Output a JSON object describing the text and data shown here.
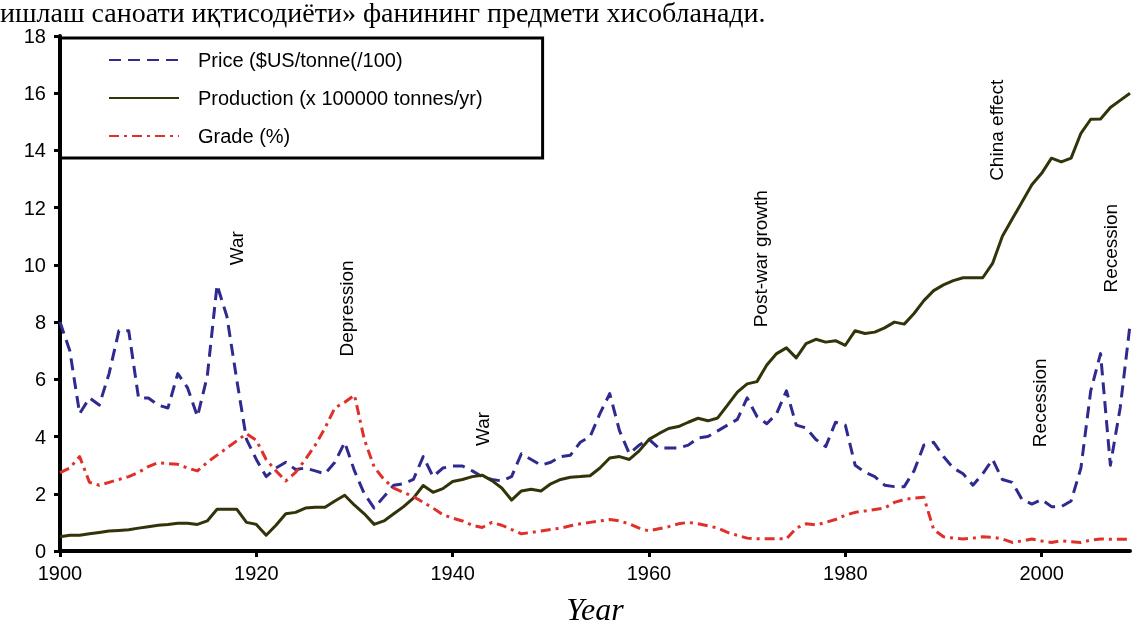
{
  "chart_data": {
    "type": "line",
    "annotations": [
      "ишлаш саноати иқтисодиёти» фанининг предмети хисобланади.",
      "War",
      "Depression",
      "War",
      "Post-war growth",
      "China effect",
      "Recession",
      "Recession"
    ],
    "xlabel": "Year",
    "x": [
      1900,
      1901,
      1902,
      1903,
      1904,
      1905,
      1906,
      1907,
      1908,
      1909,
      1910,
      1911,
      1912,
      1913,
      1914,
      1915,
      1916,
      1917,
      1918,
      1919,
      1920,
      1921,
      1922,
      1923,
      1924,
      1925,
      1926,
      1927,
      1928,
      1929,
      1930,
      1931,
      1932,
      1933,
      1934,
      1935,
      1936,
      1937,
      1938,
      1939,
      1940,
      1941,
      1942,
      1943,
      1944,
      1945,
      1946,
      1947,
      1948,
      1949,
      1950,
      1951,
      1952,
      1953,
      1954,
      1955,
      1956,
      1957,
      1958,
      1959,
      1960,
      1961,
      1962,
      1963,
      1964,
      1965,
      1966,
      1967,
      1968,
      1969,
      1970,
      1971,
      1972,
      1973,
      1974,
      1975,
      1976,
      1977,
      1978,
      1979,
      1980,
      1981,
      1982,
      1983,
      1984,
      1985,
      1986,
      1987,
      1988,
      1989,
      1990,
      1991,
      1992,
      1993,
      1994,
      1995,
      1996,
      1997,
      1998,
      1999,
      2000,
      2001,
      2002,
      2003,
      2004,
      2005,
      2006,
      2007,
      2008,
      2009
    ],
    "series": [
      {
        "name": "Price ($US/tonne(/100)",
        "color": "#2f2a8f",
        "line_style": "dashed",
        "values": [
          8.0,
          7.0,
          4.8,
          5.35,
          5.1,
          6.2,
          7.7,
          7.7,
          5.35,
          5.35,
          5.1,
          5.0,
          6.2,
          5.7,
          4.7,
          6.1,
          9.3,
          8.2,
          6.0,
          3.9,
          3.2,
          2.6,
          2.9,
          3.1,
          2.85,
          2.9,
          2.8,
          2.7,
          3.1,
          3.8,
          2.8,
          2.0,
          1.5,
          1.9,
          2.3,
          2.35,
          2.5,
          3.3,
          2.6,
          2.9,
          2.97,
          2.97,
          2.8,
          2.6,
          2.5,
          2.45,
          2.6,
          3.4,
          3.2,
          3.0,
          3.1,
          3.3,
          3.35,
          3.8,
          4.0,
          4.8,
          5.5,
          4.2,
          3.4,
          3.7,
          3.9,
          3.6,
          3.6,
          3.6,
          3.7,
          3.95,
          4.0,
          4.2,
          4.4,
          4.6,
          5.35,
          4.7,
          4.45,
          4.8,
          5.6,
          4.4,
          4.3,
          3.9,
          3.65,
          4.5,
          4.4,
          3.0,
          2.75,
          2.6,
          2.3,
          2.25,
          2.25,
          2.8,
          3.7,
          3.8,
          3.3,
          2.9,
          2.7,
          2.3,
          2.7,
          3.2,
          2.5,
          2.4,
          1.8,
          1.64,
          1.8,
          1.55,
          1.55,
          1.75,
          2.9,
          5.6,
          6.9,
          3.0,
          5.0,
          7.9
        ]
      },
      {
        "name": "Production (x 100000 tonnes/yr)",
        "color": "#33330a",
        "line_style": "solid",
        "values": [
          0.5,
          0.55,
          0.55,
          0.6,
          0.65,
          0.7,
          0.72,
          0.74,
          0.8,
          0.85,
          0.9,
          0.93,
          0.97,
          0.97,
          0.93,
          1.05,
          1.46,
          1.46,
          1.46,
          1.0,
          0.93,
          0.55,
          0.9,
          1.3,
          1.35,
          1.5,
          1.53,
          1.53,
          1.75,
          1.95,
          1.6,
          1.3,
          0.93,
          1.05,
          1.3,
          1.55,
          1.85,
          2.29,
          2.05,
          2.18,
          2.43,
          2.5,
          2.6,
          2.65,
          2.46,
          2.2,
          1.78,
          2.1,
          2.16,
          2.1,
          2.35,
          2.5,
          2.58,
          2.6,
          2.63,
          2.9,
          3.25,
          3.3,
          3.2,
          3.5,
          3.9,
          4.1,
          4.28,
          4.35,
          4.5,
          4.64,
          4.55,
          4.65,
          5.1,
          5.55,
          5.84,
          5.92,
          6.5,
          6.9,
          7.1,
          6.75,
          7.25,
          7.4,
          7.3,
          7.35,
          7.19,
          7.7,
          7.6,
          7.65,
          7.8,
          8.0,
          7.93,
          8.3,
          8.75,
          9.1,
          9.3,
          9.45,
          9.55,
          9.55,
          9.55,
          10.05,
          11.0,
          11.6,
          12.2,
          12.8,
          13.2,
          13.73,
          13.6,
          13.73,
          14.6,
          15.09,
          15.1,
          15.5,
          15.75,
          16.0
        ]
      },
      {
        "name": "Grade (%)",
        "color": "#e0302a",
        "line_style": "dashdot",
        "values": [
          2.74,
          2.9,
          3.3,
          2.4,
          2.3,
          2.4,
          2.5,
          2.6,
          2.75,
          2.95,
          3.09,
          3.05,
          3.03,
          2.9,
          2.8,
          3.1,
          3.35,
          3.6,
          3.85,
          4.1,
          3.87,
          3.2,
          2.8,
          2.45,
          2.75,
          3.2,
          3.7,
          4.3,
          5.0,
          5.2,
          5.45,
          3.9,
          2.94,
          2.5,
          2.2,
          2.05,
          1.9,
          1.7,
          1.5,
          1.27,
          1.15,
          1.05,
          0.9,
          0.82,
          1.0,
          0.9,
          0.75,
          0.6,
          0.65,
          0.7,
          0.75,
          0.8,
          0.88,
          0.95,
          1.0,
          1.05,
          1.1,
          1.05,
          0.95,
          0.8,
          0.7,
          0.78,
          0.85,
          0.95,
          1.0,
          0.95,
          0.88,
          0.8,
          0.65,
          0.55,
          0.45,
          0.43,
          0.43,
          0.43,
          0.42,
          0.8,
          0.95,
          0.91,
          1.0,
          1.1,
          1.25,
          1.35,
          1.4,
          1.45,
          1.5,
          1.7,
          1.8,
          1.85,
          1.88,
          0.75,
          0.5,
          0.45,
          0.42,
          0.45,
          0.5,
          0.48,
          0.42,
          0.3,
          0.35,
          0.42,
          0.35,
          0.3,
          0.36,
          0.32,
          0.3,
          0.38,
          0.42,
          0.41,
          0.41,
          0.41
        ]
      }
    ],
    "xlim": [
      1900,
      2009
    ],
    "xticks": [
      1900,
      1920,
      1940,
      1960,
      1980,
      2000
    ],
    "ylim": [
      0,
      18
    ],
    "yticks": [
      0,
      2,
      4,
      6,
      8,
      10,
      12,
      14,
      16,
      18
    ],
    "grid": false,
    "legend": "top left",
    "marker": "none"
  }
}
